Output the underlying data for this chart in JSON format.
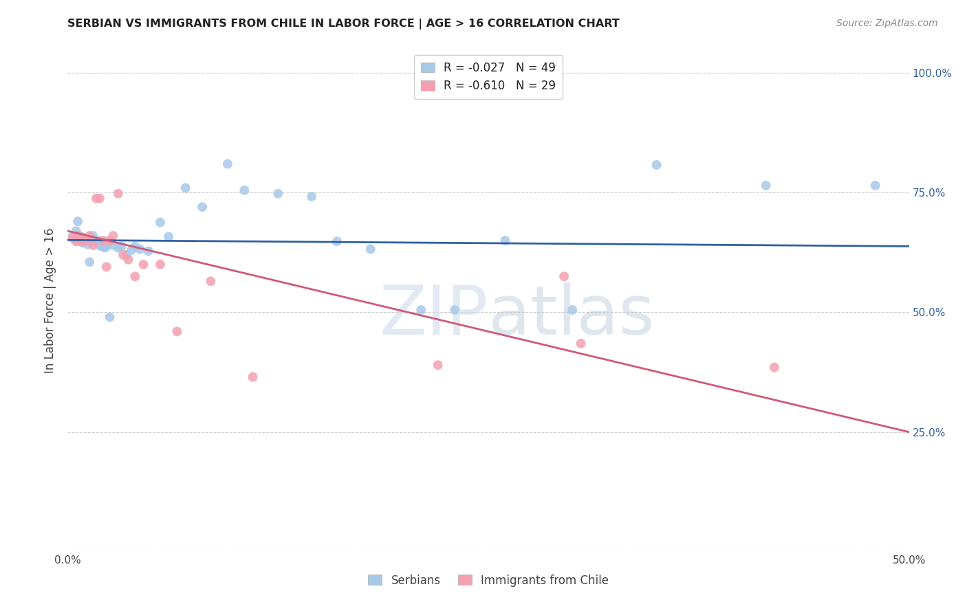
{
  "title": "SERBIAN VS IMMIGRANTS FROM CHILE IN LABOR FORCE | AGE > 16 CORRELATION CHART",
  "source": "Source: ZipAtlas.com",
  "ylabel": "In Labor Force | Age > 16",
  "legend_blue_R": "R = -0.027",
  "legend_blue_N": "N = 49",
  "legend_pink_R": "R = -0.610",
  "legend_pink_N": "N = 29",
  "blue_color": "#a8c8e8",
  "pink_color": "#f4a0b0",
  "blue_line_color": "#3060a0",
  "pink_line_color": "#d05878",
  "xlim": [
    0.0,
    0.5
  ],
  "ylim": [
    0.0,
    1.05
  ],
  "yticks": [
    0.0,
    0.25,
    0.5,
    0.75,
    1.0
  ],
  "xticks": [
    0.0,
    0.1,
    0.2,
    0.3,
    0.4,
    0.5
  ],
  "blue_scatter_x": [
    0.003,
    0.005,
    0.006,
    0.007,
    0.008,
    0.009,
    0.01,
    0.011,
    0.012,
    0.013,
    0.014,
    0.015,
    0.016,
    0.017,
    0.018,
    0.019,
    0.02,
    0.021,
    0.022,
    0.023,
    0.025,
    0.027,
    0.03,
    0.032,
    0.035,
    0.038,
    0.04,
    0.043,
    0.048,
    0.055,
    0.06,
    0.07,
    0.08,
    0.095,
    0.105,
    0.125,
    0.145,
    0.16,
    0.18,
    0.21,
    0.23,
    0.26,
    0.3,
    0.35,
    0.415,
    0.48,
    0.006,
    0.013,
    0.025
  ],
  "blue_scatter_y": [
    0.66,
    0.67,
    0.65,
    0.66,
    0.658,
    0.645,
    0.655,
    0.648,
    0.642,
    0.65,
    0.655,
    0.66,
    0.648,
    0.645,
    0.65,
    0.64,
    0.638,
    0.645,
    0.635,
    0.638,
    0.648,
    0.64,
    0.635,
    0.638,
    0.62,
    0.63,
    0.638,
    0.632,
    0.628,
    0.688,
    0.658,
    0.76,
    0.72,
    0.81,
    0.755,
    0.748,
    0.742,
    0.648,
    0.632,
    0.505,
    0.505,
    0.65,
    0.505,
    0.808,
    0.765,
    0.765,
    0.69,
    0.605,
    0.49
  ],
  "pink_scatter_x": [
    0.003,
    0.005,
    0.006,
    0.007,
    0.008,
    0.009,
    0.01,
    0.011,
    0.013,
    0.015,
    0.017,
    0.019,
    0.021,
    0.023,
    0.025,
    0.027,
    0.03,
    0.033,
    0.036,
    0.04,
    0.045,
    0.055,
    0.065,
    0.085,
    0.11,
    0.22,
    0.295,
    0.305,
    0.42
  ],
  "pink_scatter_y": [
    0.655,
    0.648,
    0.66,
    0.65,
    0.655,
    0.648,
    0.655,
    0.65,
    0.66,
    0.64,
    0.738,
    0.738,
    0.65,
    0.595,
    0.65,
    0.66,
    0.748,
    0.62,
    0.61,
    0.575,
    0.6,
    0.6,
    0.46,
    0.565,
    0.365,
    0.39,
    0.575,
    0.435,
    0.385
  ],
  "blue_line_x": [
    0.0,
    0.5
  ],
  "blue_line_y": [
    0.651,
    0.638
  ],
  "pink_line_x": [
    0.0,
    0.5
  ],
  "pink_line_y": [
    0.67,
    0.25
  ]
}
